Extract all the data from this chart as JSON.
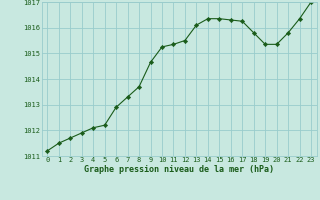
{
  "x": [
    0,
    1,
    2,
    3,
    4,
    5,
    6,
    7,
    8,
    9,
    10,
    11,
    12,
    13,
    14,
    15,
    16,
    17,
    18,
    19,
    20,
    21,
    22,
    23
  ],
  "y": [
    1011.2,
    1011.5,
    1011.7,
    1011.9,
    1012.1,
    1012.2,
    1012.9,
    1013.3,
    1013.7,
    1014.65,
    1015.25,
    1015.35,
    1015.5,
    1016.1,
    1016.35,
    1016.35,
    1016.3,
    1016.25,
    1015.8,
    1015.35,
    1015.35,
    1015.8,
    1016.35,
    1017.0
  ],
  "line_color": "#1a5c1a",
  "marker_color": "#1a5c1a",
  "bg_color": "#c8e8e0",
  "grid_color": "#99cccc",
  "title": "Graphe pression niveau de la mer (hPa)",
  "title_color": "#1a5c1a",
  "ylim_min": 1011,
  "ylim_max": 1017,
  "yticks": [
    1011,
    1012,
    1013,
    1014,
    1015,
    1016,
    1017
  ],
  "xticks": [
    0,
    1,
    2,
    3,
    4,
    5,
    6,
    7,
    8,
    9,
    10,
    11,
    12,
    13,
    14,
    15,
    16,
    17,
    18,
    19,
    20,
    21,
    22,
    23
  ],
  "tick_fontsize": 5.0,
  "title_fontsize": 6.0,
  "linewidth": 0.8,
  "markersize": 2.2
}
